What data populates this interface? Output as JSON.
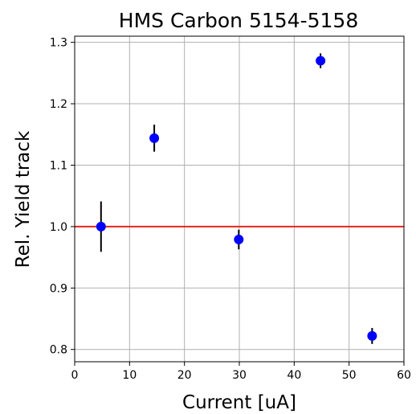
{
  "chart_data": {
    "type": "scatter",
    "title": "HMS Carbon 5154-5158",
    "xlabel": "Current [uA]",
    "ylabel": "Rel. Yield track",
    "xlim": [
      0,
      60
    ],
    "ylim": [
      0.78,
      1.31
    ],
    "xticks": [
      0,
      10,
      20,
      30,
      40,
      50,
      60
    ],
    "yticks": [
      0.8,
      0.9,
      1.0,
      1.1,
      1.2,
      1.3
    ],
    "xtick_labels": [
      "0",
      "10",
      "20",
      "30",
      "40",
      "50",
      "60"
    ],
    "ytick_labels": [
      "0.8",
      "0.9",
      "1.0",
      "1.1",
      "1.2",
      "1.3"
    ],
    "grid": true,
    "series": [
      {
        "points": [
          {
            "x": 4.8,
            "y": 1.0,
            "err": 0.041
          },
          {
            "x": 14.5,
            "y": 1.144,
            "err": 0.022
          },
          {
            "x": 29.9,
            "y": 0.979,
            "err": 0.016
          },
          {
            "x": 44.8,
            "y": 1.27,
            "err": 0.012
          },
          {
            "x": 54.2,
            "y": 0.822,
            "err": 0.013
          }
        ],
        "marker_color": "#0000ff",
        "errorbar_color": "#000000"
      }
    ],
    "reference_line": {
      "y": 1.0,
      "color": "#e8251c"
    }
  }
}
